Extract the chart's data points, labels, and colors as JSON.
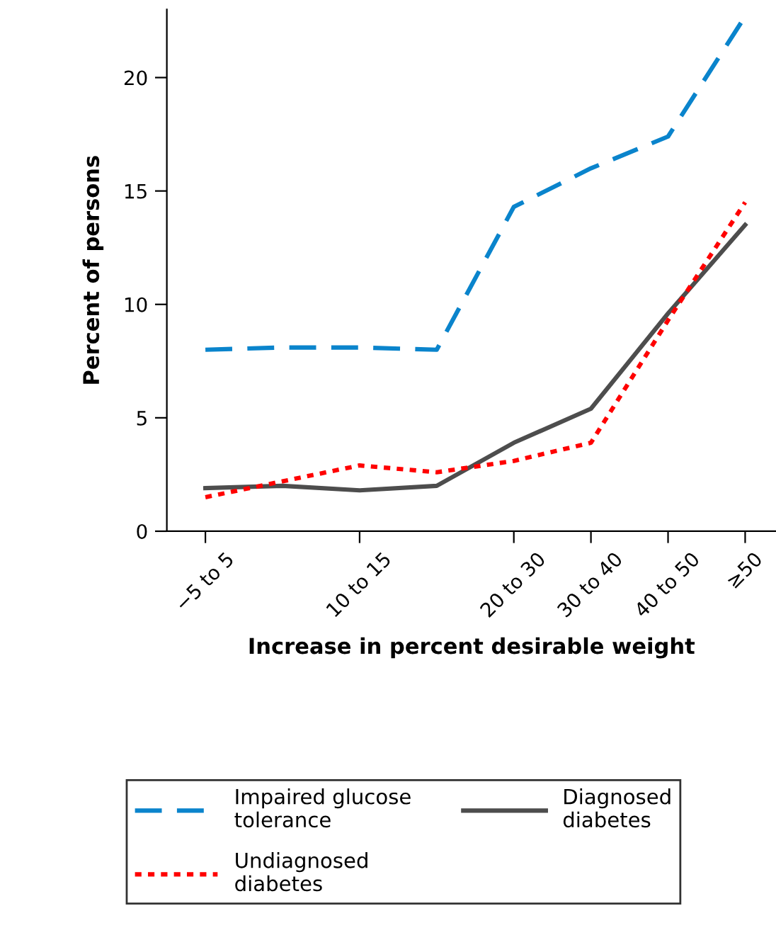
{
  "chart_data": {
    "type": "line",
    "xlabel": "Increase in percent desirable weight",
    "ylabel": "Percent of persons",
    "categories": [
      "−5 to 5",
      null,
      "10 to 15",
      null,
      "20 to 30",
      "30 to 40",
      "40 to 50",
      "≥50"
    ],
    "ylim": [
      0,
      23
    ],
    "yticks": [
      0,
      5,
      10,
      15,
      20
    ],
    "grid": false,
    "legend": "bottom",
    "series": [
      {
        "name": "Impaired glucose tolerance",
        "color": "#0a84cc",
        "line_style": "dashed",
        "values": [
          8.0,
          8.1,
          8.1,
          8.0,
          14.3,
          16.0,
          17.4,
          22.7
        ]
      },
      {
        "name": "Diagnosed diabetes",
        "color": "#4d4d4d",
        "line_style": "solid",
        "values": [
          1.9,
          2.0,
          1.8,
          2.0,
          3.9,
          5.4,
          9.6,
          13.5
        ]
      },
      {
        "name": "Undiagnosed diabetes",
        "color": "#ff0000",
        "line_style": "dotted",
        "values": [
          1.5,
          2.2,
          2.9,
          2.6,
          3.1,
          3.9,
          9.3,
          14.5
        ]
      }
    ]
  }
}
